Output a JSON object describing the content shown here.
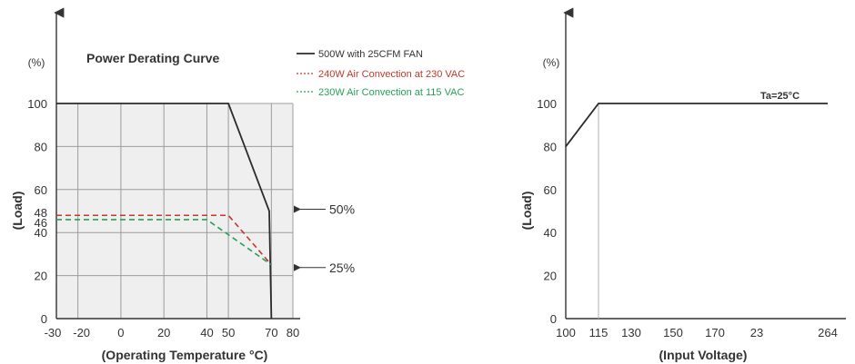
{
  "chart_data": [
    {
      "type": "line",
      "title": "Power Derating Curve",
      "xlabel": "(Operating Temperature °C)",
      "ylabel": "(Load)",
      "y_unit_label": "(%)",
      "x_ticks": [
        -30,
        -20,
        0,
        20,
        40,
        50,
        70,
        80
      ],
      "y_ticks": [
        0,
        20,
        40,
        46,
        48,
        60,
        80,
        100
      ],
      "xlim": [
        -30,
        80
      ],
      "ylim": [
        0,
        100
      ],
      "grid": true,
      "shaded_region": true,
      "legend_position": "top-right",
      "series": [
        {
          "name": "500W with 25CFM FAN",
          "style": "solid",
          "color": "#2b2b2b",
          "points": [
            [
              -30,
              100
            ],
            [
              50,
              100
            ],
            [
              69,
              50
            ],
            [
              70,
              0
            ]
          ]
        },
        {
          "name": "240W Air Convection at 230 VAC",
          "style": "dashed",
          "color": "#c0392b",
          "points": [
            [
              -30,
              48
            ],
            [
              50,
              48
            ],
            [
              70,
              25
            ]
          ]
        },
        {
          "name": "230W Air Convection at 115 VAC",
          "style": "dashed",
          "color": "#27a05a",
          "points": [
            [
              -30,
              46
            ],
            [
              40,
              46
            ],
            [
              70,
              25
            ]
          ]
        }
      ],
      "annotations": [
        {
          "text": "50%",
          "x": 70,
          "y": 50
        },
        {
          "text": "25%",
          "x": 70,
          "y": 25
        }
      ]
    },
    {
      "type": "line",
      "title": "",
      "xlabel": "(Input Voltage)",
      "ylabel": "(Load)",
      "y_unit_label": "(%)",
      "x_ticks": [
        "100",
        "115",
        "130",
        "150",
        "170",
        "23",
        "264"
      ],
      "y_ticks": [
        0,
        20,
        40,
        60,
        80,
        100
      ],
      "ylim": [
        0,
        100
      ],
      "grid": false,
      "annotations": [
        {
          "text": "Ta=25°C"
        }
      ],
      "series": [
        {
          "style": "solid",
          "color": "#2b2b2b",
          "points": [
            [
              100,
              80
            ],
            [
              115,
              100
            ],
            [
              264,
              100
            ]
          ]
        }
      ]
    }
  ]
}
